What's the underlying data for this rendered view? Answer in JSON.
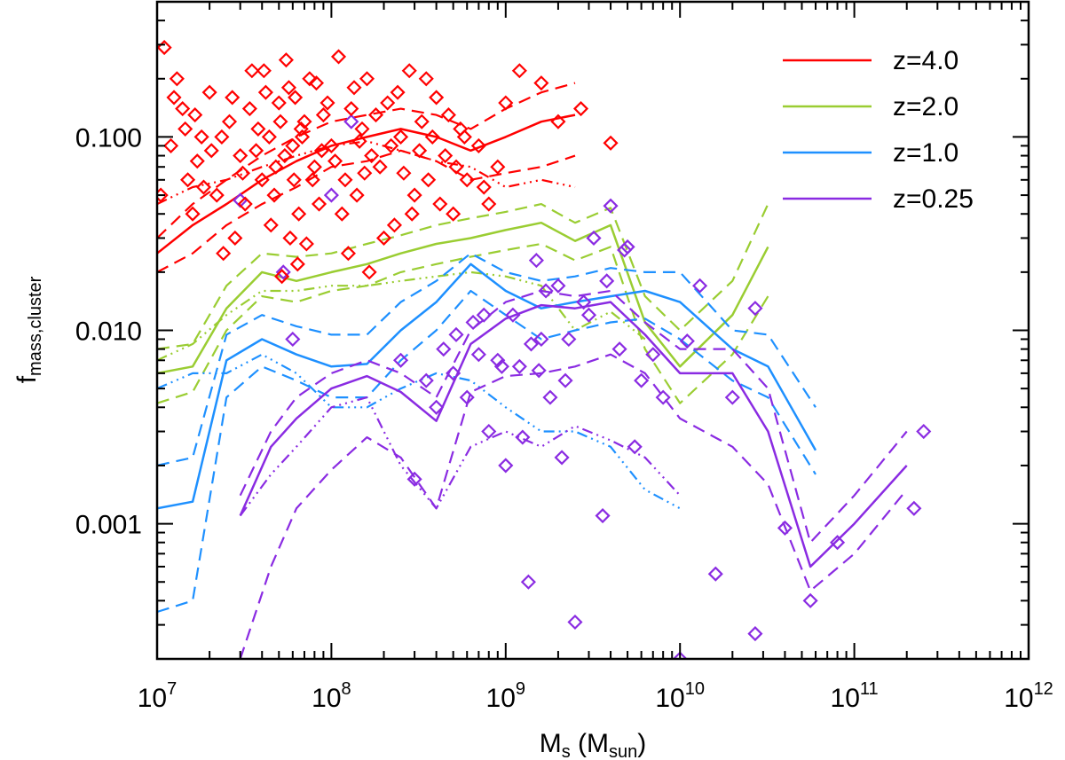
{
  "chart_data": {
    "type": "scatter",
    "title": "",
    "xlabel": {
      "main": "M",
      "sub": "s",
      "mid": " (M",
      "sub2": "sun",
      "end": ")"
    },
    "ylabel": {
      "main": "f",
      "sub": "mass,cluster"
    },
    "xscale": "log",
    "yscale": "log",
    "xlim": [
      10000000,
      1000000000000
    ],
    "ylim": [
      0.0002,
      0.5
    ],
    "x_ticks": [
      {
        "value": 10000000,
        "base": "10",
        "exp": "7"
      },
      {
        "value": 100000000,
        "base": "10",
        "exp": "8"
      },
      {
        "value": 1000000000,
        "base": "10",
        "exp": "9"
      },
      {
        "value": 10000000000,
        "base": "10",
        "exp": "10"
      },
      {
        "value": 100000000000,
        "base": "10",
        "exp": "11"
      },
      {
        "value": 1000000000000,
        "base": "10",
        "exp": "12"
      }
    ],
    "y_ticks": [
      {
        "value": 0.001,
        "label": "0.001"
      },
      {
        "value": 0.01,
        "label": "0.010"
      },
      {
        "value": 0.1,
        "label": "0.100"
      }
    ],
    "legend_position": "top-right",
    "legend": [
      {
        "label": "z=4.0",
        "color": "#ff0000"
      },
      {
        "label": "z=2.0",
        "color": "#9acd32"
      },
      {
        "label": "z=1.0",
        "color": "#1e90ff"
      },
      {
        "label": "z=0.25",
        "color": "#8a2be2"
      }
    ],
    "series": [
      {
        "name": "z=4.0",
        "color": "#ff0000",
        "x": [
          10000000.0,
          16000000.0,
          25000000.0,
          40000000.0,
          63000000.0,
          100000000.0,
          160000000.0,
          250000000.0,
          400000000.0,
          630000000.0,
          1000000000.0,
          1600000000.0,
          2500000000.0
        ],
        "median": [
          0.025,
          0.035,
          0.045,
          0.06,
          0.075,
          0.09,
          0.1,
          0.11,
          0.1,
          0.085,
          0.1,
          0.12,
          0.13
        ],
        "upper": [
          0.03,
          0.045,
          0.06,
          0.08,
          0.1,
          0.12,
          0.13,
          0.14,
          0.13,
          0.11,
          0.14,
          0.17,
          0.19
        ],
        "lower": [
          0.02,
          0.025,
          0.035,
          0.045,
          0.055,
          0.07,
          0.075,
          0.085,
          0.075,
          0.06,
          0.065,
          0.07,
          0.08
        ],
        "dotdash": [
          0.045,
          0.055,
          0.06,
          0.07,
          0.08,
          0.09,
          0.095,
          0.085,
          0.075,
          0.07,
          0.055,
          0.06,
          0.055
        ]
      },
      {
        "name": "z=2.0",
        "color": "#9acd32",
        "x": [
          10000000.0,
          16000000.0,
          25000000.0,
          40000000.0,
          63000000.0,
          100000000.0,
          160000000.0,
          250000000.0,
          400000000.0,
          630000000.0,
          1000000000.0,
          1600000000.0,
          2500000000.0,
          4000000000.0,
          6300000000.0,
          10000000000.0,
          20000000000.0,
          32000000000.0
        ],
        "median": [
          0.006,
          0.0065,
          0.013,
          0.02,
          0.018,
          0.02,
          0.022,
          0.025,
          0.028,
          0.03,
          0.033,
          0.036,
          0.029,
          0.035,
          0.011,
          0.0065,
          0.012,
          0.027
        ],
        "upper": [
          0.008,
          0.0085,
          0.017,
          0.025,
          0.024,
          0.025,
          0.028,
          0.031,
          0.035,
          0.038,
          0.041,
          0.045,
          0.036,
          0.043,
          0.015,
          0.01,
          0.018,
          0.045
        ],
        "lower": [
          0.0042,
          0.0048,
          0.01,
          0.015,
          0.014,
          0.016,
          0.017,
          0.02,
          0.022,
          0.024,
          0.026,
          0.028,
          0.023,
          0.027,
          0.008,
          0.0042,
          0.0075,
          0.015
        ],
        "dotdash": [
          0.007,
          0.0085,
          0.012,
          0.016,
          0.016,
          0.017,
          0.017,
          0.018,
          0.019,
          0.02,
          0.019,
          0.017,
          0.01,
          0.0125,
          0.009
        ]
      },
      {
        "name": "z=1.0",
        "color": "#1e90ff",
        "x": [
          10000000.0,
          16000000.0,
          25000000.0,
          40000000.0,
          63000000.0,
          100000000.0,
          160000000.0,
          250000000.0,
          400000000.0,
          630000000.0,
          1000000000.0,
          1600000000.0,
          2500000000.0,
          4000000000.0,
          6300000000.0,
          10000000000.0,
          20000000000.0,
          32000000000.0,
          60000000000.0
        ],
        "median": [
          0.0012,
          0.0013,
          0.007,
          0.009,
          0.0075,
          0.0065,
          0.0067,
          0.01,
          0.014,
          0.022,
          0.016,
          0.013,
          0.014,
          0.015,
          0.016,
          0.014,
          0.008,
          0.0065,
          0.0024
        ],
        "upper": [
          0.002,
          0.0022,
          0.0095,
          0.012,
          0.0105,
          0.0095,
          0.0095,
          0.014,
          0.018,
          0.025,
          0.02,
          0.018,
          0.019,
          0.021,
          0.02,
          0.02,
          0.01,
          0.0095,
          0.004
        ],
        "lower": [
          0.00035,
          0.0004,
          0.0045,
          0.0065,
          0.0055,
          0.0045,
          0.0045,
          0.007,
          0.01,
          0.016,
          0.012,
          0.009,
          0.01,
          0.011,
          0.0115,
          0.009,
          0.0055,
          0.0045,
          0.0018
        ],
        "dotdash": [
          0.005,
          0.006,
          0.006,
          0.0075,
          0.006,
          0.004,
          0.004,
          0.005,
          0.006,
          0.0055,
          0.004,
          0.003,
          0.003,
          0.0025,
          0.0015,
          0.0012
        ]
      },
      {
        "name": "z=0.25",
        "color": "#8a2be2",
        "x": [
          30000000.0,
          45000000.0,
          63000000.0,
          100000000.0,
          160000000.0,
          250000000.0,
          400000000.0,
          630000000.0,
          1000000000.0,
          1600000000.0,
          2500000000.0,
          4000000000.0,
          6300000000.0,
          10000000000.0,
          20000000000.0,
          32000000000.0,
          56000000000.0,
          100000000000.0,
          200000000000.0
        ],
        "median": [
          0.0011,
          0.0025,
          0.0035,
          0.005,
          0.0058,
          0.0048,
          0.0034,
          0.0085,
          0.0115,
          0.0135,
          0.013,
          0.014,
          0.0095,
          0.006,
          0.006,
          0.003,
          0.0006,
          0.001,
          0.002
        ],
        "upper": [
          0.0014,
          0.003,
          0.0045,
          0.006,
          0.007,
          0.006,
          0.0045,
          0.01,
          0.014,
          0.016,
          0.015,
          0.016,
          0.011,
          0.008,
          0.008,
          0.005,
          0.0008,
          0.0014,
          0.003
        ],
        "lower": [
          0.0002,
          0.0006,
          0.0012,
          0.0019,
          0.0028,
          0.0022,
          0.0012,
          0.0048,
          0.0058,
          0.006,
          0.0065,
          0.0075,
          0.006,
          0.0035,
          0.0025,
          0.0016,
          0.00045,
          0.0007,
          0.0015
        ],
        "dotdash": [
          0.0011,
          0.0018,
          0.0025,
          0.004,
          0.0045,
          0.002,
          0.0012,
          0.0025,
          0.003,
          0.0025,
          0.0032,
          0.0027,
          0.0022,
          0.0014
        ]
      }
    ],
    "scatter_z4": [
      [
        11000000.0,
        0.29
      ],
      [
        13000000.0,
        0.2
      ],
      [
        12000000.0,
        0.09
      ],
      [
        15000000.0,
        0.06
      ],
      [
        18000000.0,
        0.1
      ],
      [
        20000000.0,
        0.17
      ],
      [
        16000000.0,
        0.04
      ],
      [
        22000000.0,
        0.05
      ],
      [
        26000000.0,
        0.12
      ],
      [
        30000000.0,
        0.08
      ],
      [
        35000000.0,
        0.22
      ],
      [
        40000000.0,
        0.06
      ],
      [
        45000000.0,
        0.035
      ],
      [
        50000000.0,
        0.15
      ],
      [
        55000000.0,
        0.25
      ],
      [
        60000000.0,
        0.09
      ],
      [
        65000000.0,
        0.04
      ],
      [
        70000000.0,
        0.12
      ],
      [
        75000000.0,
        0.2
      ],
      [
        80000000.0,
        0.07
      ],
      [
        85000000.0,
        0.045
      ],
      [
        90000000.0,
        0.13
      ],
      [
        100000000.0,
        0.09
      ],
      [
        110000000.0,
        0.26
      ],
      [
        120000000.0,
        0.06
      ],
      [
        130000000.0,
        0.14
      ],
      [
        140000000.0,
        0.05
      ],
      [
        150000000.0,
        0.11
      ],
      [
        160000000.0,
        0.2
      ],
      [
        170000000.0,
        0.08
      ],
      [
        190000000.0,
        0.07
      ],
      [
        210000000.0,
        0.15
      ],
      [
        230000000.0,
        0.035
      ],
      [
        250000000.0,
        0.1
      ],
      [
        280000000.0,
        0.22
      ],
      [
        300000000.0,
        0.05
      ],
      [
        330000000.0,
        0.12
      ],
      [
        360000000.0,
        0.06
      ],
      [
        400000000.0,
        0.16
      ],
      [
        450000000.0,
        0.08
      ],
      [
        500000000.0,
        0.04
      ],
      [
        550000000.0,
        0.11
      ],
      [
        600000000.0,
        0.06
      ],
      [
        700000000.0,
        0.09
      ],
      [
        750000000.0,
        0.055
      ],
      [
        800000000.0,
        0.045
      ],
      [
        900000000.0,
        0.07
      ],
      [
        1000000000.0,
        0.15
      ],
      [
        1200000000.0,
        0.22
      ],
      [
        1600000000.0,
        0.19
      ],
      [
        2000000000.0,
        0.12
      ],
      [
        2700000000.0,
        0.14
      ],
      [
        4000000000.0,
        0.093
      ],
      [
        14000000.0,
        0.14
      ],
      [
        17000000.0,
        0.075
      ],
      [
        24000000.0,
        0.025
      ],
      [
        28000000.0,
        0.03
      ],
      [
        32000000.0,
        0.045
      ],
      [
        38000000.0,
        0.11
      ],
      [
        42000000.0,
        0.17
      ],
      [
        48000000.0,
        0.07
      ],
      [
        52000000.0,
        0.019
      ],
      [
        58000000.0,
        0.03
      ],
      [
        62000000.0,
        0.16
      ],
      [
        68000000.0,
        0.1
      ],
      [
        72000000.0,
        0.028
      ],
      [
        78000000.0,
        0.06
      ],
      [
        82000000.0,
        0.19
      ],
      [
        88000000.0,
        0.085
      ],
      [
        95000000.0,
        0.15
      ],
      [
        105000000.0,
        0.075
      ],
      [
        115000000.0,
        0.04
      ],
      [
        125000000.0,
        0.025
      ],
      [
        135000000.0,
        0.18
      ],
      [
        145000000.0,
        0.095
      ],
      [
        155000000.0,
        0.065
      ],
      [
        165000000.0,
        0.02
      ],
      [
        180000000.0,
        0.13
      ],
      [
        200000000.0,
        0.03
      ],
      [
        220000000.0,
        0.09
      ],
      [
        240000000.0,
        0.17
      ],
      [
        260000000.0,
        0.065
      ],
      [
        290000000.0,
        0.04
      ],
      [
        320000000.0,
        0.085
      ],
      [
        350000000.0,
        0.2
      ],
      [
        380000000.0,
        0.1
      ],
      [
        420000000.0,
        0.045
      ],
      [
        470000000.0,
        0.13
      ],
      [
        520000000.0,
        0.07
      ],
      [
        580000000.0,
        0.1
      ],
      [
        10500000.0,
        0.05
      ],
      [
        12500000.0,
        0.16
      ],
      [
        14500000.0,
        0.11
      ],
      [
        16500000.0,
        0.13
      ],
      [
        18500000.0,
        0.055
      ],
      [
        20500000.0,
        0.085
      ],
      [
        23500000.0,
        0.1
      ],
      [
        27000000.0,
        0.16
      ],
      [
        31000000.0,
        0.065
      ],
      [
        34000000.0,
        0.14
      ],
      [
        37000000.0,
        0.085
      ],
      [
        41000000.0,
        0.22
      ],
      [
        44000000.0,
        0.1
      ],
      [
        47000000.0,
        0.05
      ],
      [
        51000000.0,
        0.12
      ],
      [
        54000000.0,
        0.08
      ],
      [
        57000000.0,
        0.18
      ],
      [
        61000000.0,
        0.06
      ],
      [
        64000000.0,
        0.022
      ],
      [
        67000000.0,
        0.11
      ]
    ],
    "scatter_z025": [
      [
        30000000.0,
        0.047
      ],
      [
        53000000.0,
        0.02
      ],
      [
        60000000.0,
        0.009
      ],
      [
        100000000.0,
        0.05
      ],
      [
        130000000.0,
        0.12
      ],
      [
        250000000.0,
        0.007
      ],
      [
        300000000.0,
        0.0017
      ],
      [
        350000000.0,
        0.0055
      ],
      [
        400000000.0,
        0.004
      ],
      [
        500000000.0,
        0.006
      ],
      [
        600000000.0,
        0.0045
      ],
      [
        700000000.0,
        0.0075
      ],
      [
        800000000.0,
        0.003
      ],
      [
        900000000.0,
        0.007
      ],
      [
        1000000000.0,
        0.002
      ],
      [
        1100000000.0,
        0.012
      ],
      [
        1200000000.0,
        0.0065
      ],
      [
        1350000000.0,
        0.0005
      ],
      [
        1500000000.0,
        0.023
      ],
      [
        1600000000.0,
        0.009
      ],
      [
        1800000000.0,
        0.0045
      ],
      [
        2000000000.0,
        0.017
      ],
      [
        2200000000.0,
        0.0055
      ],
      [
        2500000000.0,
        0.00031
      ],
      [
        2800000000.0,
        0.014
      ],
      [
        3200000000.0,
        0.03
      ],
      [
        3600000000.0,
        0.0011
      ],
      [
        4000000000.0,
        0.044
      ],
      [
        4500000000.0,
        0.008
      ],
      [
        5000000000.0,
        0.027
      ],
      [
        5500000000.0,
        0.0025
      ],
      [
        6000000000.0,
        0.0055
      ],
      [
        7000000000.0,
        0.0075
      ],
      [
        8000000000.0,
        0.0045
      ],
      [
        10000000000.0,
        0.0002
      ],
      [
        11000000000.0,
        0.0088
      ],
      [
        13000000000.0,
        0.017
      ],
      [
        16000000000.0,
        0.00055
      ],
      [
        20000000000.0,
        0.0045
      ],
      [
        27000000000.0,
        0.00027
      ],
      [
        27000000000.0,
        0.013
      ],
      [
        40000000000.0,
        0.00095
      ],
      [
        56000000000.0,
        0.0004
      ],
      [
        80000000000.0,
        0.0008
      ],
      [
        220000000000.0,
        0.0012
      ],
      [
        250000000000.0,
        0.003
      ],
      [
        1400000000.0,
        0.0085
      ],
      [
        1700000000.0,
        0.016
      ],
      [
        2100000000.0,
        0.0022
      ],
      [
        950000000.0,
        0.0065
      ],
      [
        750000000.0,
        0.012
      ],
      [
        650000000.0,
        0.011
      ],
      [
        520000000.0,
        0.0095
      ],
      [
        440000000.0,
        0.008
      ],
      [
        1250000000.0,
        0.0028
      ],
      [
        1550000000.0,
        0.0062
      ],
      [
        3000000000.0,
        0.012
      ],
      [
        3800000000.0,
        0.018
      ],
      [
        4800000000.0,
        0.026
      ],
      [
        2300000000.0,
        0.009
      ]
    ]
  }
}
